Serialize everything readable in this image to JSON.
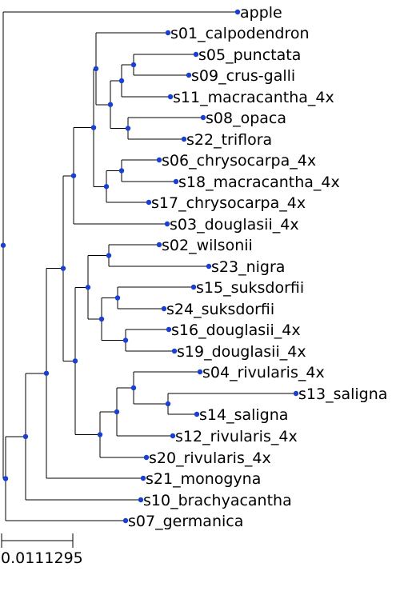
{
  "tree": {
    "node_color": "#1a3fd1",
    "branch_color": "#000000",
    "taxa": [
      "apple",
      "s01_calpodendron",
      "s05_punctata",
      "s09_crus-galli",
      "s11_macracantha_4x",
      "s08_opaca",
      "s22_triflora",
      "s06_chrysocarpa_4x",
      "s18_macracantha_4x",
      "s17_chrysocarpa_4x",
      "s03_douglasii_4x",
      "s02_wilsonii",
      "s23_nigra",
      "s15_suksdorfii",
      "s24_suksdorfii",
      "s16_douglasii_4x",
      "s19_douglasii_4x",
      "s04_rivularis_4x",
      "s13_saligna",
      "s14_saligna",
      "s12_rivularis_4x",
      "s20_rivularis_4x",
      "s21_monogyna",
      "s10_brachyacantha",
      "s07_germanica"
    ],
    "scale_bar": {
      "length": 0.0111295,
      "label": "0.0111295"
    }
  }
}
